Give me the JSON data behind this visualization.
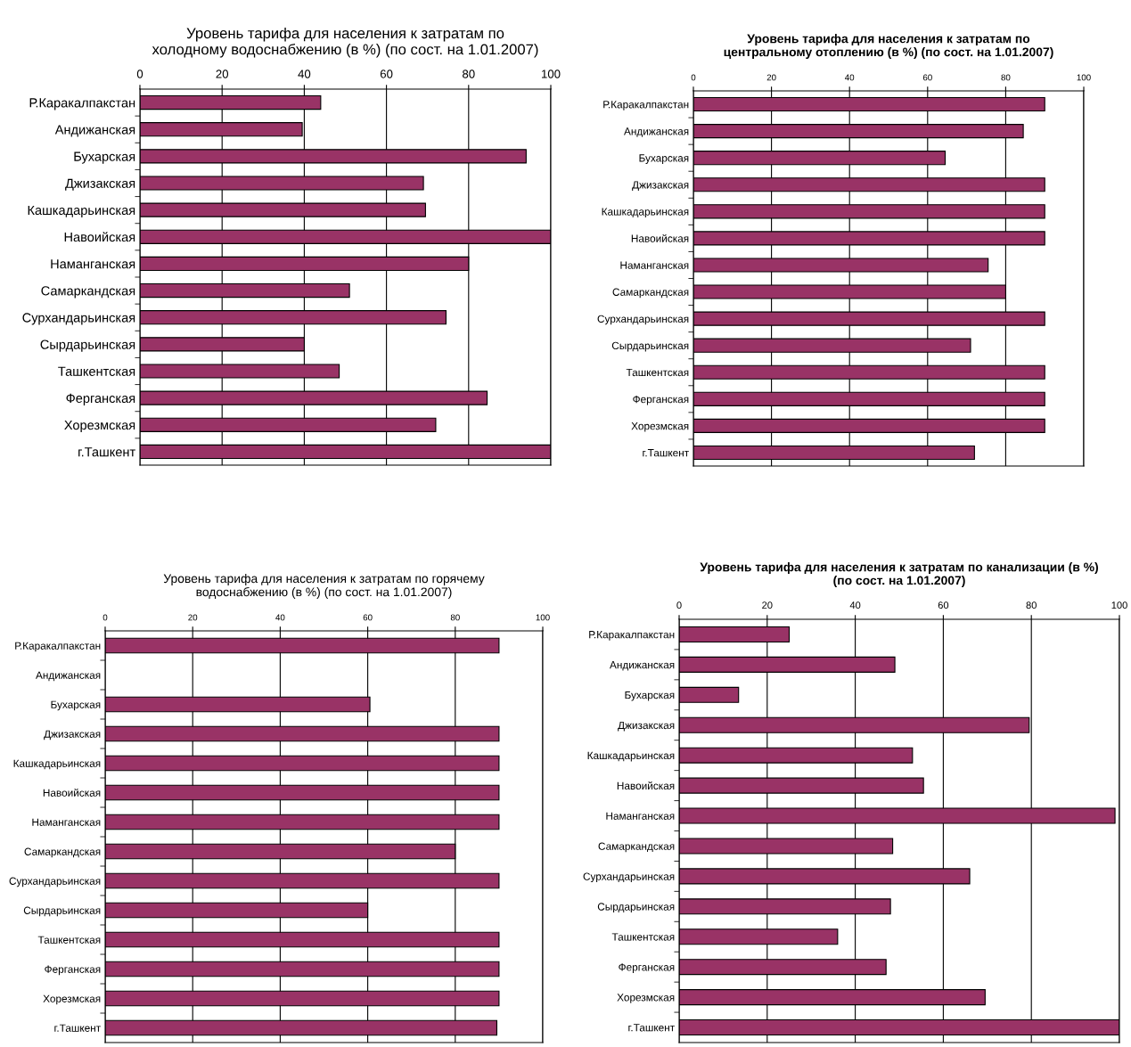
{
  "chart_data": [
    {
      "type": "bar",
      "orientation": "horizontal",
      "title": "Уровень тарифа для населения к затратам по холодному водоснабжению (в %) (по сост. на 1.01.2007)",
      "categories": [
        "Р.Каракалпакстан",
        "Андижанская",
        "Бухарская",
        "Джизакская",
        "Кашкадарьинская",
        "Навоийская",
        "Наманганская",
        "Самаркандская",
        "Сурхандарьинская",
        "Сырдарьинская",
        "Ташкентская",
        "Ферганская",
        "Хорезмская",
        "г.Ташкент"
      ],
      "values": [
        44,
        39.5,
        94,
        69,
        69.5,
        100,
        80,
        51,
        74.5,
        40,
        48.5,
        84.5,
        72,
        100
      ],
      "color": "#993366",
      "xlim": [
        0,
        100
      ],
      "xticks": [
        0,
        20,
        40,
        60,
        80,
        100
      ],
      "grid": "x"
    },
    {
      "type": "bar",
      "orientation": "horizontal",
      "title": "Уровень тарифа для населения к затратам по центральному отоплению (в %) (по сост. на 1.01.2007)",
      "categories": [
        "Р.Каракалпакстан",
        "Андижанская",
        "Бухарская",
        "Джизакская",
        "Кашкадарьинская",
        "Навоийская",
        "Наманганская",
        "Самаркандская",
        "Сурхандарьинская",
        "Сырдарьинская",
        "Ташкентская",
        "Ферганская",
        "Хорезмская",
        "г.Ташкент"
      ],
      "values": [
        90,
        84.5,
        64.5,
        90,
        90,
        90,
        75.5,
        80,
        90,
        71,
        90,
        90,
        90,
        72
      ],
      "color": "#993366",
      "xlim": [
        0,
        100
      ],
      "xticks": [
        0,
        20,
        40,
        60,
        80,
        100
      ],
      "grid": "x"
    },
    {
      "type": "bar",
      "orientation": "horizontal",
      "title": "Уровень тарифа для населения к затратам по горячему водоснабжению (в %) (по сост. на 1.01.2007)",
      "categories": [
        "Р.Каракалпакстан",
        "Андижанская",
        "Бухарская",
        "Джизакская",
        "Кашкадарьинская",
        "Навоийская",
        "Наманганская",
        "Самаркандская",
        "Сурхандарьинская",
        "Сырдарьинская",
        "Ташкентская",
        "Ферганская",
        "Хорезмская",
        "г.Ташкент"
      ],
      "values": [
        90,
        null,
        60.5,
        90,
        90,
        90,
        90,
        80,
        90,
        60,
        90,
        90,
        90,
        89.5
      ],
      "color": "#993366",
      "xlim": [
        0,
        100
      ],
      "xticks": [
        0,
        20,
        40,
        60,
        80,
        100
      ],
      "grid": "x"
    },
    {
      "type": "bar",
      "orientation": "horizontal",
      "title": "Уровень тарифа для населения к затратам по канализации (в %) (по сост. на 1.01.2007)",
      "categories": [
        "Р.Каракалпакстан",
        "Андижанская",
        "Бухарская",
        "Джизакская",
        "Кашкадарьинская",
        "Навоийская",
        "Наманганская",
        "Самаркандская",
        "Сурхандарьинская",
        "Сырдарьинская",
        "Ташкентская",
        "Ферганская",
        "Хорезмская",
        "г.Ташкент"
      ],
      "values": [
        25,
        49,
        13.5,
        79.5,
        53,
        55.5,
        99,
        48.5,
        66,
        48,
        36,
        47,
        69.5,
        100
      ],
      "color": "#993366",
      "xlim": [
        0,
        100
      ],
      "xticks": [
        0,
        20,
        40,
        60,
        80,
        100
      ],
      "grid": "x"
    }
  ]
}
